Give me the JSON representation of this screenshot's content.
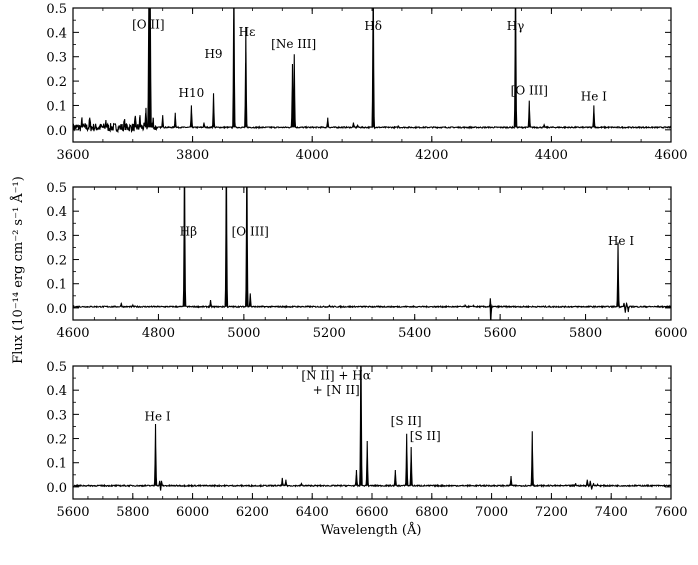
{
  "chart_data": {
    "type": "line",
    "ylabel": "Flux (10⁻¹⁴ erg cm⁻² s⁻¹ Å⁻¹)",
    "xlabel": "Wavelength (Å)",
    "ylim": [
      -0.05,
      0.5
    ],
    "yticks": [
      "0.0",
      "0.1",
      "0.2",
      "0.3",
      "0.4",
      "0.5"
    ],
    "grid": false,
    "panels": [
      {
        "xlim": [
          3600,
          4600
        ],
        "xticks": [
          "3600",
          "3800",
          "4000",
          "4200",
          "4400",
          "4600"
        ],
        "continuum": 0.01,
        "noise_until": 3740,
        "lines": [
          {
            "x": 3615,
            "y": 0.04
          },
          {
            "x": 3628,
            "y": 0.05
          },
          {
            "x": 3655,
            "y": 0.04
          },
          {
            "x": 3686,
            "y": 0.04
          },
          {
            "x": 3704,
            "y": 0.05
          },
          {
            "x": 3712,
            "y": 0.06
          },
          {
            "x": 3722,
            "y": 0.09
          },
          {
            "x": 3727,
            "y": 0.7
          },
          {
            "x": 3729,
            "y": 0.7
          },
          {
            "x": 3734,
            "y": 0.05
          },
          {
            "x": 3750,
            "y": 0.06
          },
          {
            "x": 3771,
            "y": 0.07
          },
          {
            "x": 3798,
            "y": 0.1
          },
          {
            "x": 3819,
            "y": 0.03
          },
          {
            "x": 3835,
            "y": 0.15
          },
          {
            "x": 3869,
            "y": 0.7
          },
          {
            "x": 3889,
            "y": 0.42
          },
          {
            "x": 3967,
            "y": 0.27
          },
          {
            "x": 3970,
            "y": 0.31
          },
          {
            "x": 4026,
            "y": 0.05
          },
          {
            "x": 4069,
            "y": 0.03
          },
          {
            "x": 4076,
            "y": 0.02
          },
          {
            "x": 4102,
            "y": 0.7
          },
          {
            "x": 4144,
            "y": 0.015
          },
          {
            "x": 4340,
            "y": 0.7
          },
          {
            "x": 4363,
            "y": 0.12
          },
          {
            "x": 4388,
            "y": 0.02
          },
          {
            "x": 4471,
            "y": 0.1
          }
        ],
        "labels": [
          {
            "text": "[O II]",
            "x": 3726,
            "y": 0.415
          },
          {
            "text": "H10",
            "x": 3798,
            "y": 0.135
          },
          {
            "text": "H9",
            "x": 3835,
            "y": 0.295
          },
          {
            "text": "Hε",
            "x": 3891,
            "y": 0.385
          },
          {
            "text": "[Ne III]",
            "x": 3969,
            "y": 0.335
          },
          {
            "text": "Hδ",
            "x": 4102,
            "y": 0.41
          },
          {
            "text": "Hγ",
            "x": 4340,
            "y": 0.41
          },
          {
            "text": "[O III]",
            "x": 4363,
            "y": 0.145
          },
          {
            "text": "He I",
            "x": 4471,
            "y": 0.12
          }
        ]
      },
      {
        "xlim": [
          4600,
          6000
        ],
        "xticks": [
          "4600",
          "4800",
          "5000",
          "5200",
          "5400",
          "5600",
          "5800",
          "6000"
        ],
        "continuum": 0.005,
        "lines": [
          {
            "x": 4713,
            "y": 0.02
          },
          {
            "x": 4740,
            "y": 0.01
          },
          {
            "x": 4861,
            "y": 0.7
          },
          {
            "x": 4922,
            "y": 0.03
          },
          {
            "x": 4959,
            "y": 0.7
          },
          {
            "x": 5007,
            "y": 0.7
          },
          {
            "x": 5015,
            "y": 0.06
          },
          {
            "x": 5200,
            "y": 0.01
          },
          {
            "x": 5518,
            "y": 0.01
          },
          {
            "x": 5538,
            "y": 0.01
          },
          {
            "x": 5577,
            "y": 0.04
          },
          {
            "x": 5578,
            "y": -0.08
          },
          {
            "x": 5876,
            "y": 0.27
          },
          {
            "x": 5890,
            "y": 0.02
          },
          {
            "x": 5893,
            "y": -0.02
          },
          {
            "x": 5896,
            "y": 0.02
          },
          {
            "x": 5900,
            "y": -0.015
          }
        ],
        "labels": [
          {
            "text": "Hβ",
            "x": 4870,
            "y": 0.3
          },
          {
            "text": "[O III]",
            "x": 5015,
            "y": 0.3
          },
          {
            "text": "He I",
            "x": 5883,
            "y": 0.26
          }
        ]
      },
      {
        "xlim": [
          5600,
          7600
        ],
        "xticks": [
          "5600",
          "5800",
          "6000",
          "6200",
          "6400",
          "6600",
          "6800",
          "7000",
          "7200",
          "7400",
          "7600"
        ],
        "continuum": 0.005,
        "lines": [
          {
            "x": 5876,
            "y": 0.26
          },
          {
            "x": 5890,
            "y": 0.025
          },
          {
            "x": 5893,
            "y": -0.015
          },
          {
            "x": 5896,
            "y": 0.025
          },
          {
            "x": 6300,
            "y": 0.035
          },
          {
            "x": 6312,
            "y": 0.03
          },
          {
            "x": 6364,
            "y": 0.015
          },
          {
            "x": 6548,
            "y": 0.07
          },
          {
            "x": 6563,
            "y": 0.7
          },
          {
            "x": 6584,
            "y": 0.19
          },
          {
            "x": 6678,
            "y": 0.07
          },
          {
            "x": 6716,
            "y": 0.22
          },
          {
            "x": 6731,
            "y": 0.165
          },
          {
            "x": 7065,
            "y": 0.045
          },
          {
            "x": 7136,
            "y": 0.23
          },
          {
            "x": 7281,
            "y": 0.015
          },
          {
            "x": 7320,
            "y": 0.03
          },
          {
            "x": 7330,
            "y": 0.025
          },
          {
            "x": 7335,
            "y": -0.01
          },
          {
            "x": 7341,
            "y": 0.015
          },
          {
            "x": 7355,
            "y": 0.01
          }
        ],
        "labels": [
          {
            "text": "He I",
            "x": 5883,
            "y": 0.275
          },
          {
            "text": "[N II] + Hα",
            "x": 6480,
            "y": 0.445
          },
          {
            "text": "+ [N II]",
            "x": 6480,
            "y": 0.385
          },
          {
            "text": "[S II]",
            "x": 6714,
            "y": 0.255
          },
          {
            "text": "[S II]",
            "x": 6778,
            "y": 0.195
          }
        ]
      }
    ]
  }
}
